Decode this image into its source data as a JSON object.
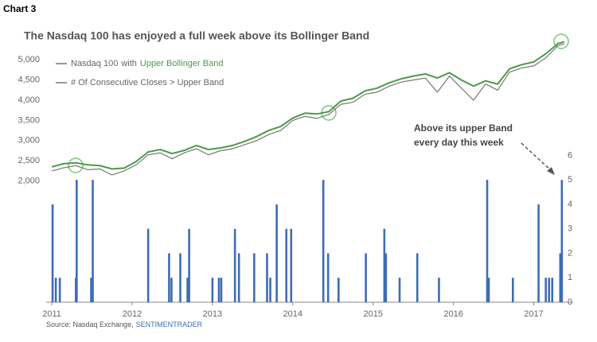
{
  "header": "Chart 3",
  "chart_data": {
    "type": "line-bar",
    "title": "The Nasdaq 100 has enjoyed a full week above its Bollinger Band",
    "legend_link": "with",
    "xlim": [
      2010.93,
      2017.49
    ],
    "xticks": [
      2011,
      2012,
      2013,
      2014,
      2015,
      2016,
      2017
    ],
    "ylim": [
      -1000,
      5300
    ],
    "yticks": [
      {
        "value": 2000,
        "label": "2,000"
      },
      {
        "value": 2500,
        "label": "2,500"
      },
      {
        "value": 3000,
        "label": "3,000"
      },
      {
        "value": 3500,
        "label": "3,500"
      },
      {
        "value": 4000,
        "label": "4,000"
      },
      {
        "value": 4500,
        "label": "4,500"
      },
      {
        "value": 5000,
        "label": "5,000"
      }
    ],
    "y2lim": [
      0,
      10.4
    ],
    "y2ticks": [
      0,
      1,
      2,
      3,
      4,
      5,
      6
    ],
    "series": [
      {
        "name": "Nasdaq 100",
        "color": "#777777",
        "kind": "line",
        "x": [
          2011,
          2011.15,
          2011.3,
          2011.45,
          2011.6,
          2011.75,
          2011.9,
          2012.05,
          2012.2,
          2012.35,
          2012.5,
          2012.65,
          2012.8,
          2012.95,
          2013.1,
          2013.25,
          2013.4,
          2013.55,
          2013.7,
          2013.85,
          2014,
          2014.15,
          2014.3,
          2014.45,
          2014.6,
          2014.75,
          2014.9,
          2015.05,
          2015.2,
          2015.35,
          2015.5,
          2015.65,
          2015.8,
          2015.95,
          2016.1,
          2016.25,
          2016.4,
          2016.55,
          2016.7,
          2016.85,
          2017,
          2017.15,
          2017.3,
          2017.38
        ],
        "values": [
          2250,
          2330,
          2380,
          2280,
          2300,
          2150,
          2250,
          2400,
          2650,
          2700,
          2550,
          2700,
          2800,
          2650,
          2750,
          2800,
          2900,
          3000,
          3150,
          3250,
          3500,
          3600,
          3550,
          3650,
          3900,
          3950,
          4150,
          4200,
          4350,
          4450,
          4500,
          4550,
          4200,
          4600,
          4300,
          4000,
          4400,
          4250,
          4700,
          4800,
          4850,
          5050,
          5350,
          5400
        ]
      },
      {
        "name": "Upper Bollinger Band",
        "color": "#4a9a4a",
        "kind": "line",
        "x": [
          2011,
          2011.15,
          2011.3,
          2011.45,
          2011.6,
          2011.75,
          2011.9,
          2012.05,
          2012.2,
          2012.35,
          2012.5,
          2012.65,
          2012.8,
          2012.95,
          2013.1,
          2013.25,
          2013.4,
          2013.55,
          2013.7,
          2013.85,
          2014,
          2014.15,
          2014.3,
          2014.45,
          2014.6,
          2014.75,
          2014.9,
          2015.05,
          2015.2,
          2015.35,
          2015.5,
          2015.65,
          2015.8,
          2015.95,
          2016.1,
          2016.25,
          2016.4,
          2016.55,
          2016.7,
          2016.85,
          2017,
          2017.15,
          2017.3,
          2017.38
        ],
        "values": [
          2350,
          2430,
          2450,
          2400,
          2380,
          2300,
          2320,
          2480,
          2720,
          2780,
          2680,
          2760,
          2880,
          2780,
          2820,
          2880,
          2980,
          3100,
          3250,
          3350,
          3560,
          3680,
          3660,
          3720,
          3980,
          4050,
          4230,
          4300,
          4430,
          4530,
          4600,
          4650,
          4550,
          4680,
          4500,
          4350,
          4480,
          4400,
          4780,
          4880,
          4950,
          5150,
          5400,
          5450
        ]
      },
      {
        "name": "# Of Consecutive Closes > Upper Band",
        "color": "#3d6db5",
        "kind": "bar",
        "axis": "y2",
        "x": [
          2011.01,
          2011.05,
          2011.1,
          2011.3,
          2011.31,
          2011.49,
          2011.51,
          2012.2,
          2012.46,
          2012.49,
          2012.6,
          2012.69,
          2012.71,
          2013.0,
          2013.08,
          2013.11,
          2013.28,
          2013.33,
          2013.52,
          2013.68,
          2013.72,
          2013.8,
          2013.92,
          2013.98,
          2014.38,
          2014.44,
          2014.57,
          2014.91,
          2015.14,
          2015.16,
          2015.33,
          2015.55,
          2015.82,
          2016.42,
          2016.44,
          2016.74,
          2017.06,
          2017.15,
          2017.19,
          2017.23,
          2017.33,
          2017.35
        ],
        "values": [
          4,
          1,
          1,
          1,
          5,
          1,
          5,
          3,
          2,
          1,
          2,
          1,
          3,
          1,
          1,
          1,
          3,
          2,
          2,
          2,
          1,
          4,
          3,
          3,
          5,
          2,
          1,
          2,
          3,
          2,
          1,
          2,
          1,
          5,
          1,
          1,
          4,
          1,
          1,
          1,
          2,
          5
        ]
      }
    ],
    "annotation": [
      "Above its upper Band",
      "every day this week"
    ],
    "source": [
      "Source: Nasdaq Exchange,",
      "SENTIMENTRADER"
    ]
  }
}
